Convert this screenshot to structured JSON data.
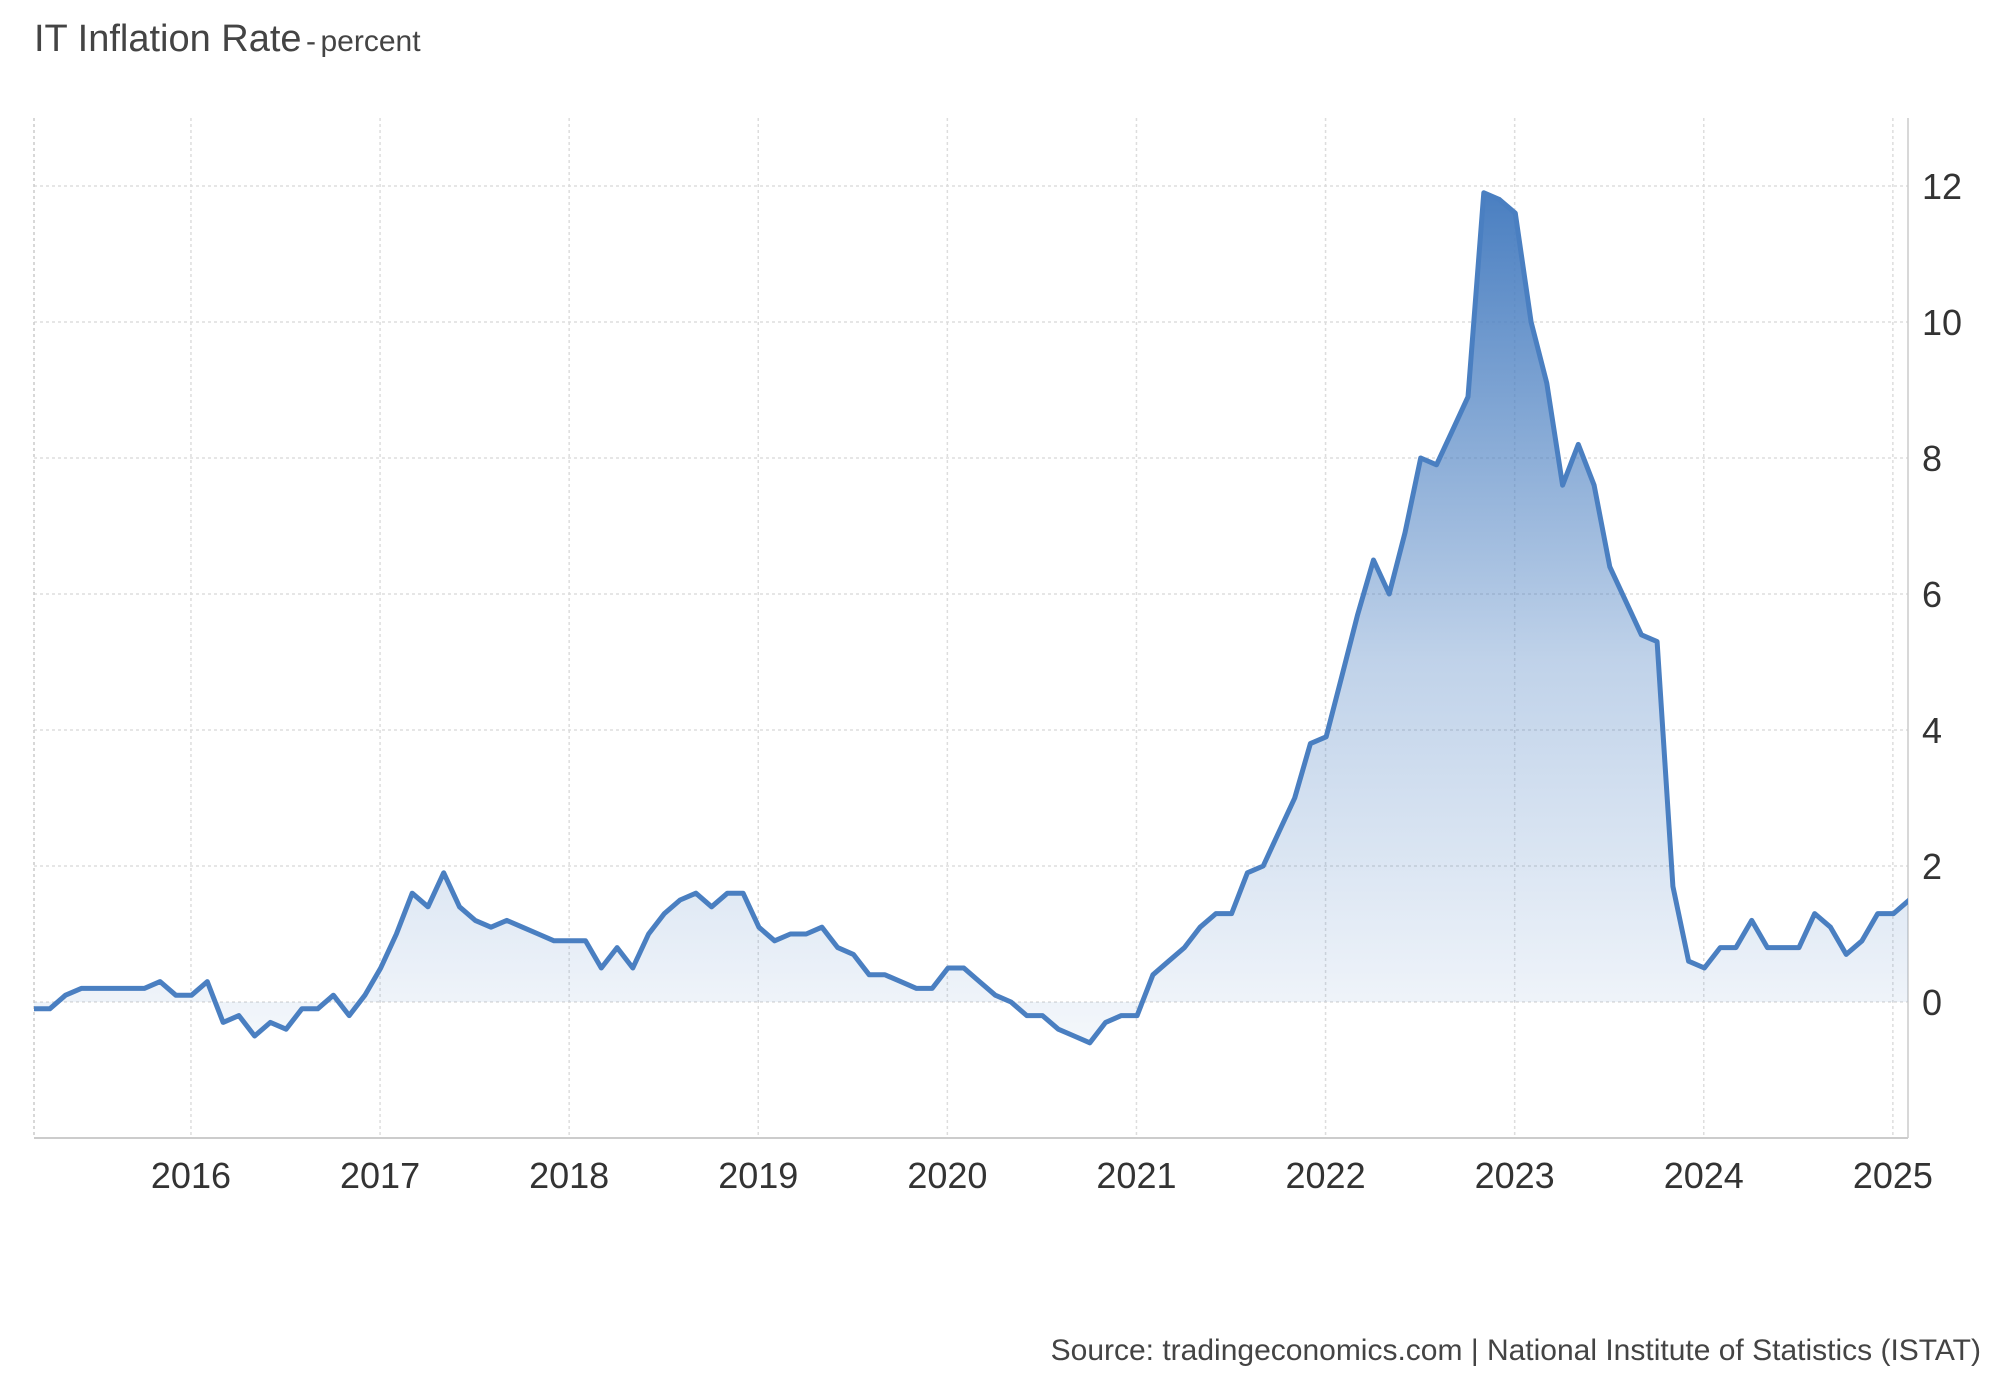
{
  "chart_data": {
    "type": "area",
    "title": "IT Inflation Rate",
    "title_separator": "-",
    "subtitle": "percent",
    "source": "Source: tradingeconomics.com | National Institute of Statistics (ISTAT)",
    "y_axis": {
      "position": "right",
      "min": -2,
      "max": 13,
      "ticks": [
        0,
        2,
        4,
        6,
        8,
        10,
        12
      ]
    },
    "x_axis": {
      "min": 2015.17,
      "max": 2025.08,
      "ticks": [
        2016,
        2017,
        2018,
        2019,
        2020,
        2021,
        2022,
        2023,
        2024,
        2025
      ]
    },
    "grid": true,
    "colors": {
      "line": "#4a7fc1",
      "fill_top": "#4a7fc1",
      "fill_bottom": "#ffffff",
      "grid": "#dddddd",
      "axis": "#cccccc"
    },
    "series": [
      {
        "x_start": 2015.17,
        "x_step": 0.0833333,
        "values": [
          -0.1,
          -0.1,
          0.1,
          0.2,
          0.2,
          0.2,
          0.2,
          0.2,
          0.3,
          0.1,
          0.1,
          0.3,
          -0.3,
          -0.2,
          -0.5,
          -0.3,
          -0.4,
          -0.1,
          -0.1,
          0.1,
          -0.2,
          0.1,
          0.5,
          1.0,
          1.6,
          1.4,
          1.9,
          1.4,
          1.2,
          1.1,
          1.2,
          1.1,
          1.0,
          0.9,
          0.9,
          0.9,
          0.5,
          0.8,
          0.5,
          1.0,
          1.3,
          1.5,
          1.6,
          1.4,
          1.6,
          1.6,
          1.1,
          0.9,
          1.0,
          1.0,
          1.1,
          0.8,
          0.7,
          0.4,
          0.4,
          0.3,
          0.2,
          0.2,
          0.5,
          0.5,
          0.3,
          0.1,
          0.0,
          -0.2,
          -0.2,
          -0.4,
          -0.5,
          -0.6,
          -0.3,
          -0.2,
          -0.2,
          0.4,
          0.6,
          0.8,
          1.1,
          1.3,
          1.3,
          1.9,
          2.0,
          2.5,
          3.0,
          3.8,
          3.9,
          4.8,
          5.7,
          6.5,
          6.0,
          6.9,
          8.0,
          7.9,
          8.4,
          8.9,
          11.9,
          11.8,
          11.6,
          10.0,
          9.1,
          7.6,
          8.2,
          7.6,
          6.4,
          5.9,
          5.4,
          5.3,
          1.7,
          0.6,
          0.5,
          0.8,
          0.8,
          1.2,
          0.8,
          0.8,
          0.8,
          1.3,
          1.1,
          0.7,
          0.9,
          1.3,
          1.3,
          1.5,
          1.6
        ]
      }
    ]
  }
}
